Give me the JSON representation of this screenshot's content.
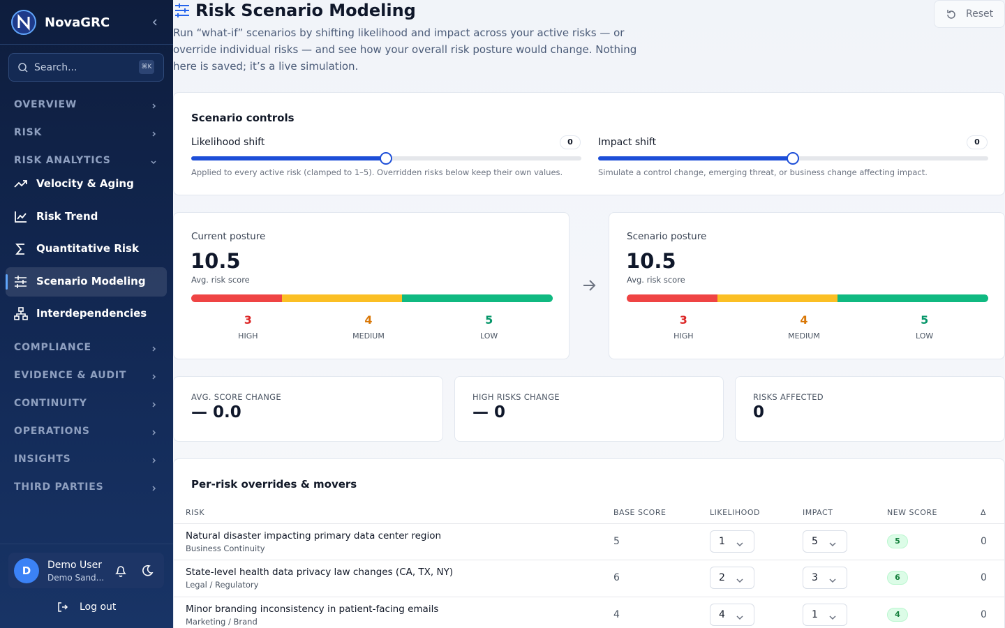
{
  "sidebar": {
    "brand": "NovaGRC",
    "search_placeholder": "Search...",
    "search_shortcut": "⌘K",
    "nav": [
      {
        "label": "OVERVIEW"
      },
      {
        "label": "RISK"
      },
      {
        "label": "RISK ANALYTICS",
        "items": [
          "Velocity & Aging",
          "Risk Trend",
          "Quantitative Risk",
          "Scenario Modeling",
          "Interdependencies"
        ]
      },
      {
        "label": "COMPLIANCE"
      },
      {
        "label": "EVIDENCE & AUDIT"
      },
      {
        "label": "CONTINUITY"
      },
      {
        "label": "OPERATIONS"
      },
      {
        "label": "INSIGHTS"
      },
      {
        "label": "THIRD PARTIES"
      }
    ],
    "user": {
      "initial": "D",
      "name": "Demo User",
      "org": "Demo Sand..."
    },
    "logout": "Log out"
  },
  "header": {
    "title": "Risk Scenario Modeling",
    "description": "Run “what-if” scenarios by shifting likelihood and impact across your active risks — or override individual risks — and see how your overall risk posture would change. Nothing here is saved; it’s a live simulation.",
    "reset": "Reset"
  },
  "controls": {
    "title": "Scenario controls",
    "sliders": [
      {
        "label": "Likelihood shift",
        "value": 0,
        "hint": "Applied to every active risk (clamped to 1–5). Overridden risks below keep their own values."
      },
      {
        "label": "Impact shift",
        "value": 0,
        "hint": "Simulate a control change, emerging threat, or business change affecting impact."
      }
    ]
  },
  "posture": [
    {
      "title": "Current posture",
      "score": 10.5,
      "score_label": "Avg. risk score",
      "counts": [
        {
          "value": 3,
          "label": "HIGH"
        },
        {
          "value": 4,
          "label": "MEDIUM"
        },
        {
          "value": 5,
          "label": "LOW"
        }
      ]
    },
    {
      "title": "Scenario posture",
      "score": 10.5,
      "score_label": "Avg. risk score",
      "counts": [
        {
          "value": 3,
          "label": "HIGH"
        },
        {
          "value": 4,
          "label": "MEDIUM"
        },
        {
          "value": 5,
          "label": "LOW"
        }
      ]
    }
  ],
  "metrics": [
    {
      "label": "AVG. SCORE CHANGE",
      "value": "— 0.0"
    },
    {
      "label": "HIGH RISKS CHANGE",
      "value": "— 0"
    },
    {
      "label": "RISKS AFFECTED",
      "value": 0
    }
  ],
  "table": {
    "title": "Per-risk overrides & movers",
    "columns": [
      "RISK",
      "BASE SCORE",
      "LIKELIHOOD",
      "IMPACT",
      "NEW SCORE",
      "Δ"
    ],
    "rows": [
      {
        "risk": "Natural disaster impacting primary data center region",
        "category": "Business Continuity",
        "base": 5,
        "likelihood": 1,
        "impact": 5,
        "new_score": 5,
        "delta": 0
      },
      {
        "risk": "State-level health data privacy law changes (CA, TX, NY)",
        "category": "Legal / Regulatory",
        "base": 6,
        "likelihood": 2,
        "impact": 3,
        "new_score": 6,
        "delta": 0
      },
      {
        "risk": "Minor branding inconsistency in patient-facing emails",
        "category": "Marketing / Brand",
        "base": 4,
        "likelihood": 4,
        "impact": 1,
        "new_score": 4,
        "delta": 0
      }
    ]
  }
}
